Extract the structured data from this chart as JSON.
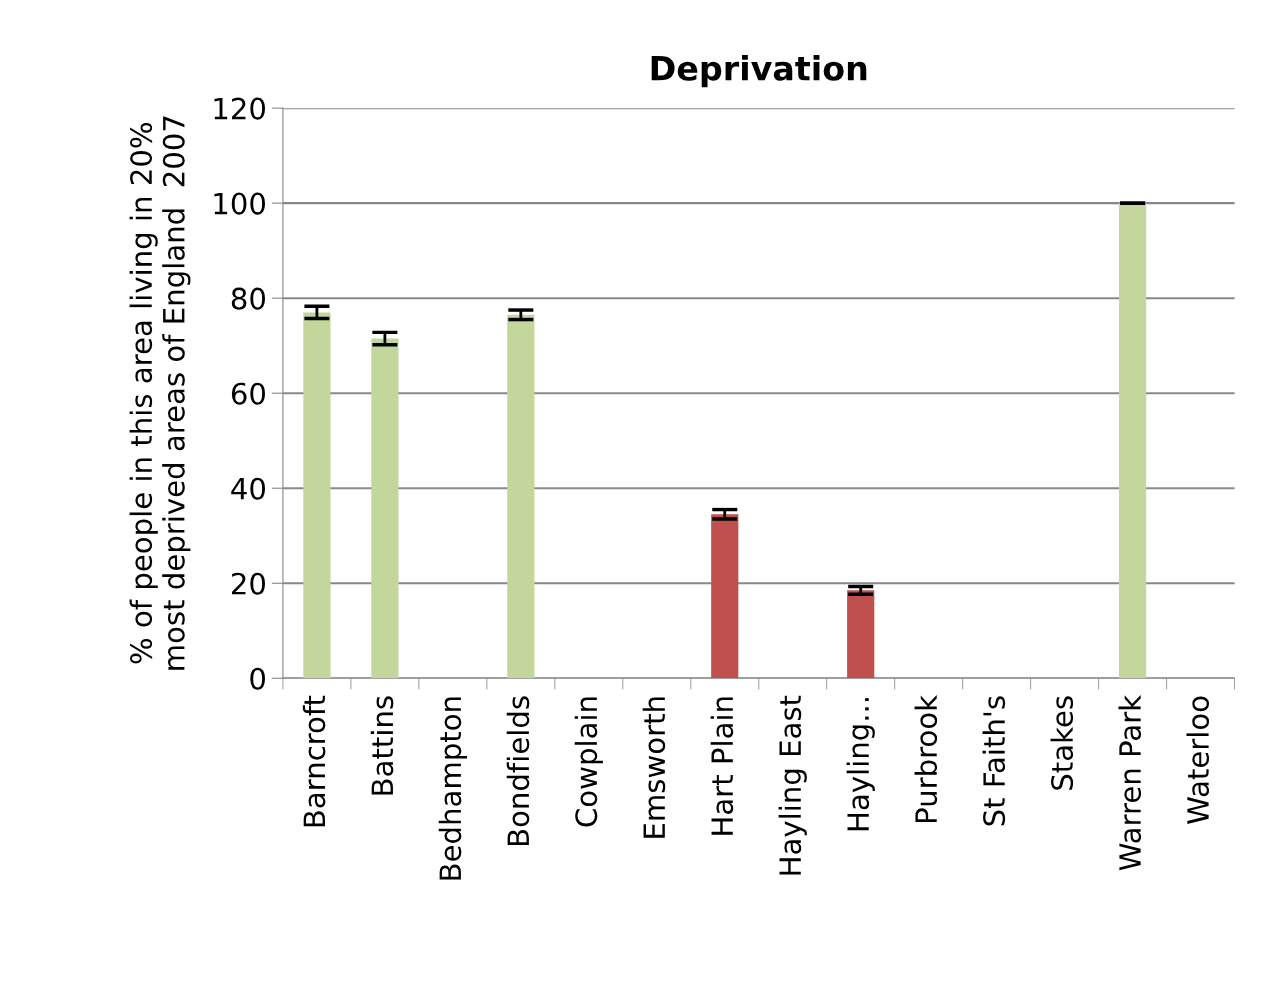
{
  "chart_data": {
    "type": "bar",
    "title": "Deprivation",
    "ylabel": "% of people in this area living in 20%\nmost deprived areas of England  2007",
    "categories": [
      "Barncroft",
      "Battins",
      "Bedhampton",
      "Bondfields",
      "Cowplain",
      "Emsworth",
      "Hart Plain",
      "Hayling East",
      "Hayling...",
      "Purbrook",
      "St Faith's",
      "Stakes",
      "Warren Park",
      "Waterloo"
    ],
    "values": [
      77,
      71.5,
      null,
      76.5,
      null,
      null,
      34.5,
      null,
      18.5,
      null,
      null,
      null,
      100,
      null
    ],
    "errors": [
      1.3,
      1.3,
      null,
      1,
      null,
      null,
      1,
      null,
      0.8,
      null,
      null,
      null,
      0,
      null
    ],
    "colors": [
      "#c3d69b",
      "#c3d69b",
      "#c3d69b",
      "#c3d69b",
      "#c3d69b",
      "#c3d69b",
      "#c0504d",
      "#c3d69b",
      "#c0504d",
      "#c3d69b",
      "#c3d69b",
      "#c3d69b",
      "#c3d69b",
      "#c3d69b"
    ],
    "ylim": [
      0,
      120
    ],
    "yticks": [
      0,
      20,
      40,
      60,
      80,
      100,
      120
    ],
    "grid": "y",
    "legend": false
  }
}
